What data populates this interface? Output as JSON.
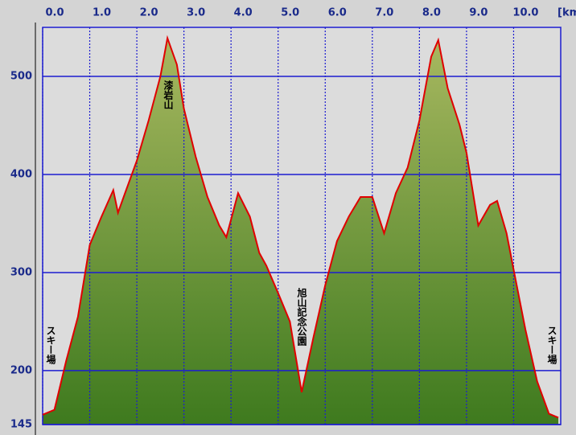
{
  "chart_data": {
    "type": "area",
    "x": [
      0,
      0.25,
      0.5,
      0.75,
      1.0,
      1.25,
      1.5,
      1.6,
      1.75,
      2.0,
      2.25,
      2.5,
      2.65,
      2.85,
      3.0,
      3.25,
      3.5,
      3.75,
      3.9,
      4.15,
      4.4,
      4.6,
      4.75,
      5.0,
      5.25,
      5.5,
      5.75,
      6.0,
      6.25,
      6.5,
      6.75,
      7.0,
      7.25,
      7.5,
      7.75,
      8.0,
      8.25,
      8.4,
      8.6,
      8.85,
      9.0,
      9.25,
      9.5,
      9.65,
      9.85,
      10.0,
      10.25,
      10.5,
      10.75,
      10.95
    ],
    "series": [
      {
        "color": "#e00000",
        "fill": "#6f9a30",
        "values": [
          155,
          160,
          210,
          255,
          328,
          357,
          384,
          361,
          381,
          414,
          455,
          500,
          539,
          512,
          467,
          418,
          377,
          348,
          336,
          381,
          357,
          320,
          307,
          279,
          250,
          178,
          234,
          287,
          332,
          357,
          377,
          377,
          340,
          381,
          407,
          455,
          520,
          537,
          488,
          451,
          422,
          348,
          369,
          373,
          340,
          303,
          242,
          189,
          156,
          152
        ]
      }
    ],
    "xlim": [
      0,
      11
    ],
    "ylim": [
      145,
      550
    ],
    "xticks": [
      {
        "value": 0,
        "label": "0.0"
      },
      {
        "value": 1,
        "label": "1.0"
      },
      {
        "value": 2,
        "label": "2.0"
      },
      {
        "value": 3,
        "label": "3.0"
      },
      {
        "value": 4,
        "label": "4.0"
      },
      {
        "value": 5,
        "label": "5.0"
      },
      {
        "value": 6,
        "label": "6.0"
      },
      {
        "value": 7,
        "label": "7.0"
      },
      {
        "value": 8,
        "label": "8.0"
      },
      {
        "value": 9,
        "label": "9.0"
      },
      {
        "value": 10,
        "label": "10.0"
      }
    ],
    "xunit": "[km]",
    "yticks": [
      145,
      200,
      300,
      400,
      500
    ],
    "grid": true,
    "annotations": [
      "スキー場",
      "漆岩山",
      "旭山記念公園",
      "スキー場"
    ]
  }
}
